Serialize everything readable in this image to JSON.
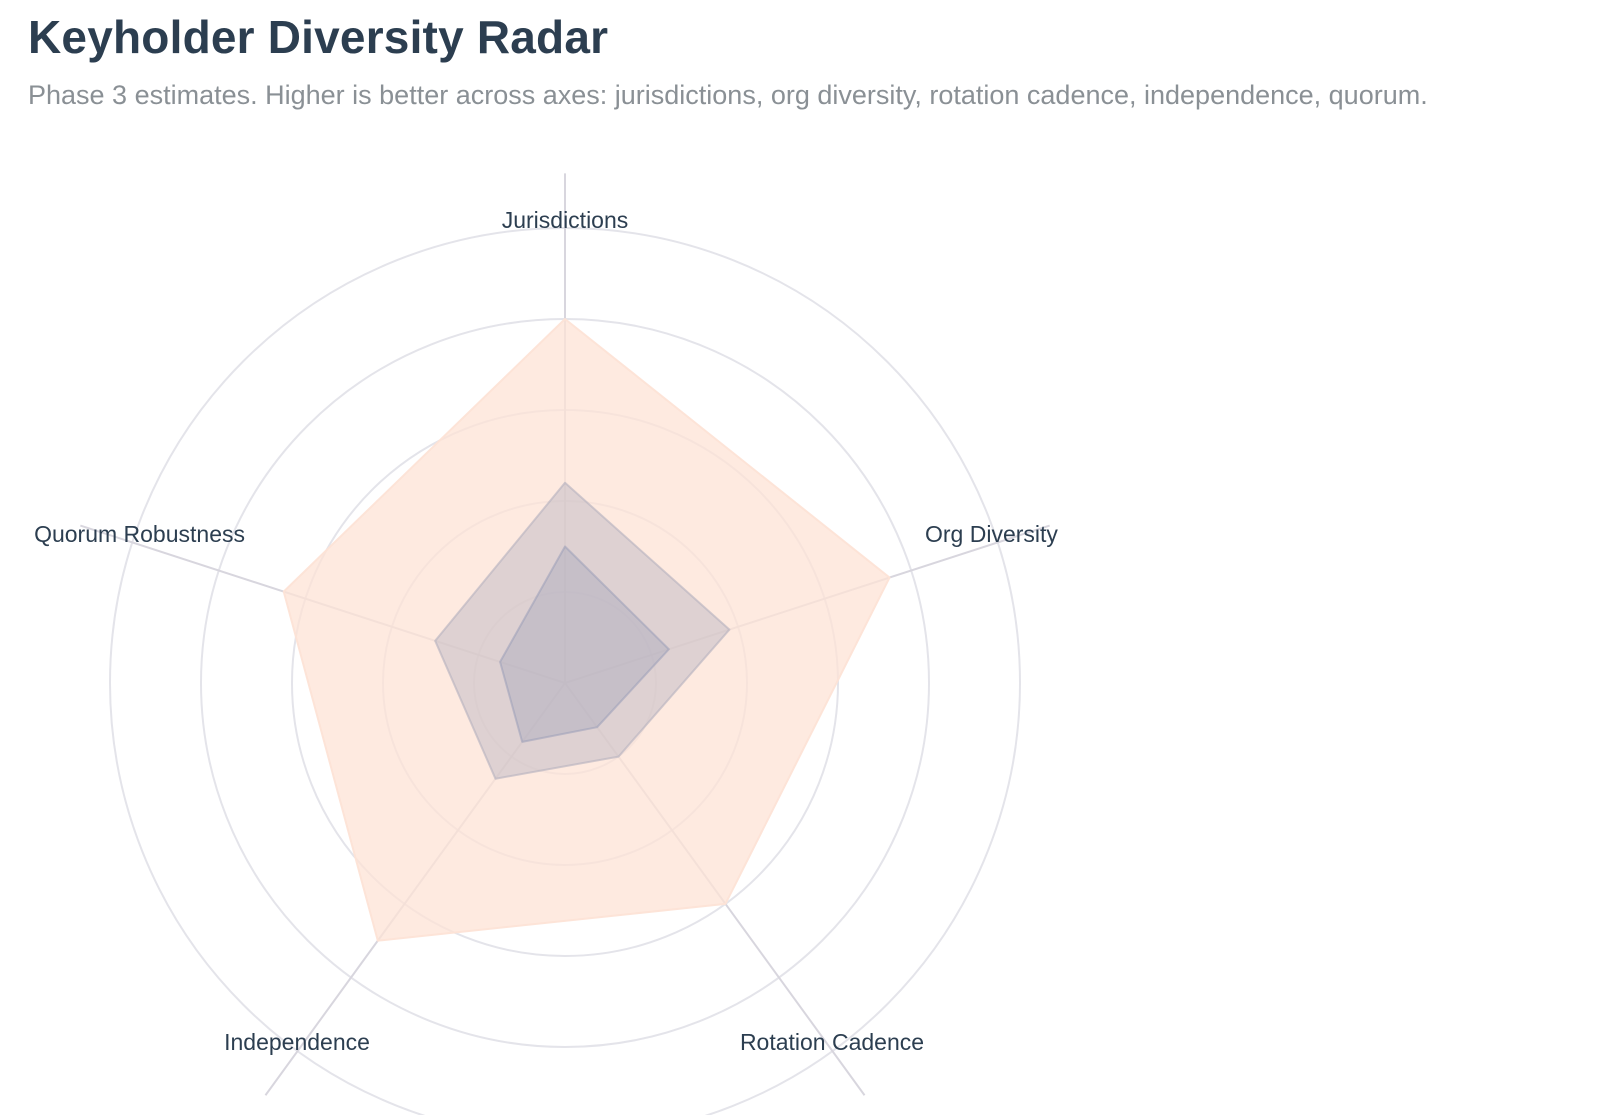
{
  "header": {
    "title": "Keyholder Diversity Radar",
    "subtitle": "Phase 3 estimates. Higher is better across axes: jurisdictions, org diversity, rotation cadence, independence, quorum."
  },
  "chart_data": {
    "type": "radar",
    "axes": [
      "Jurisdictions",
      "Org Diversity",
      "Rotation Cadence",
      "Independence",
      "Quorum Robustness"
    ],
    "rmax": 5,
    "rings": [
      1,
      2,
      3,
      4,
      5
    ],
    "grid": true,
    "legend": "none",
    "series": [
      {
        "values": [
          4.0,
          3.75,
          3.0,
          3.5,
          3.25
        ],
        "color": "#fde3d6",
        "opacity": 0.75
      },
      {
        "values": [
          2.2,
          1.9,
          1.0,
          1.3,
          1.5
        ],
        "color": "#b9b3c0",
        "opacity": 0.45
      },
      {
        "values": [
          1.5,
          1.2,
          0.6,
          0.8,
          0.75
        ],
        "color": "#9a9fb8",
        "opacity": 0.35
      }
    ]
  }
}
